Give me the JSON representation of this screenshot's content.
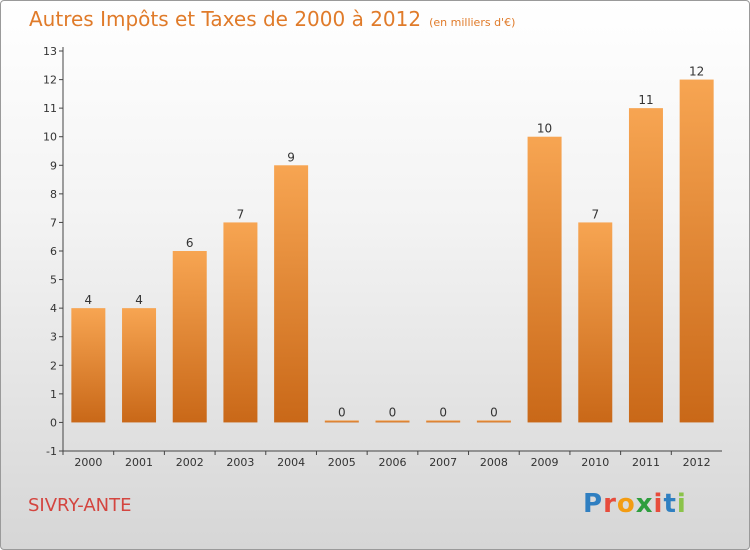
{
  "header": {
    "title": "Autres Impôts et Taxes de 2000 à 2012",
    "subtitle": "(en milliers d'€)"
  },
  "footer": {
    "town": "SIVRY-ANTE",
    "logo": [
      "P",
      "r",
      "o",
      "x",
      "i",
      "t",
      "i"
    ]
  },
  "colors": {
    "bar_light": "#f7a552",
    "bar_dark": "#c96818",
    "title": "#e07b2a",
    "town": "#d4453f",
    "logo": [
      "#2f7fc1",
      "#e74c3c",
      "#f39c12",
      "#2e9e3e",
      "#e74c3c",
      "#2f7fc1",
      "#8bc34a"
    ]
  },
  "chart_data": {
    "type": "bar",
    "categories": [
      "2000",
      "2001",
      "2002",
      "2003",
      "2004",
      "2005",
      "2006",
      "2007",
      "2008",
      "2009",
      "2010",
      "2011",
      "2012"
    ],
    "values": [
      4,
      4,
      6,
      7,
      9,
      0,
      0,
      0,
      0,
      10,
      7,
      11,
      12
    ],
    "data_labels": [
      "4",
      "4",
      "6",
      "7",
      "9",
      "0",
      "0",
      "0",
      "0",
      "10",
      "7",
      "11",
      "12"
    ],
    "y_ticks": [
      "-1",
      "0",
      "1",
      "2",
      "3",
      "4",
      "5",
      "6",
      "7",
      "8",
      "9",
      "10",
      "11",
      "12",
      "13"
    ],
    "ylim": [
      -1,
      13
    ],
    "grid": false,
    "legend": "none"
  }
}
